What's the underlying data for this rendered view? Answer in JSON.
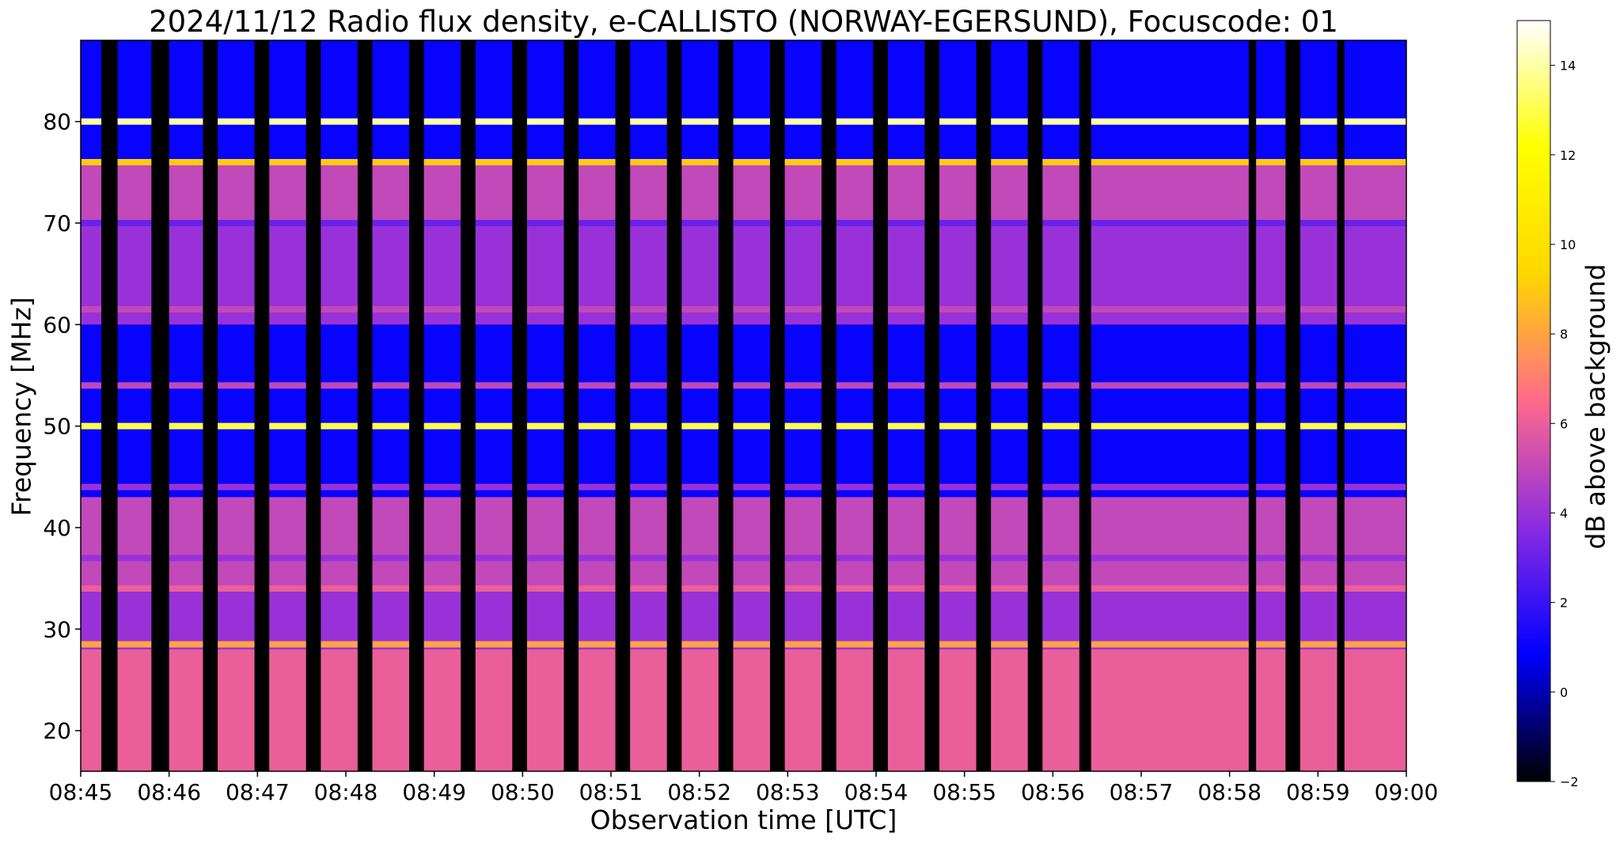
{
  "chart_data": {
    "type": "heatmap",
    "title": "2024/11/12  Radio flux density, e-CALLISTO (NORWAY-EGERSUND), Focuscode: 01",
    "xlabel": "Observation time [UTC]",
    "ylabel": "Frequency [MHz]",
    "colorbar_label": "dB above background",
    "x_ticks": [
      "08:45",
      "08:46",
      "08:47",
      "08:48",
      "08:49",
      "08:50",
      "08:51",
      "08:52",
      "08:53",
      "08:54",
      "08:55",
      "08:56",
      "08:57",
      "08:58",
      "08:59",
      "09:00"
    ],
    "x_range": [
      "08:45",
      "09:00"
    ],
    "y_ticks": [
      20,
      30,
      40,
      50,
      60,
      70,
      80
    ],
    "y_range": [
      16,
      88
    ],
    "colorbar_ticks": [
      -2,
      0,
      2,
      4,
      6,
      8,
      10,
      12,
      14
    ],
    "colorbar_range": [
      -2,
      15
    ],
    "colormap": "gnuplot2",
    "colormap_stops": [
      "#000000",
      "#0000ff",
      "#8a2be2",
      "#ff6a8a",
      "#ffd700",
      "#ffff00",
      "#ffffff"
    ],
    "background_db": -2,
    "rfi_lines_mhz": [
      80,
      76,
      70,
      61.5,
      54,
      50,
      44,
      37,
      34,
      28.5
    ],
    "rfi_line_db": [
      14,
      9,
      3,
      5,
      5,
      13,
      4,
      4,
      6,
      8
    ],
    "band_levels": [
      {
        "from": 16,
        "to": 28,
        "db": 6
      },
      {
        "from": 28,
        "to": 34,
        "db": 4
      },
      {
        "from": 34,
        "to": 43,
        "db": 5
      },
      {
        "from": 43,
        "to": 60,
        "db": 1
      },
      {
        "from": 60,
        "to": 70,
        "db": 4
      },
      {
        "from": 70,
        "to": 76,
        "db": 5
      },
      {
        "from": 76,
        "to": 88,
        "db": 1
      }
    ],
    "gaps_utc": [
      [
        "08:45:14",
        "08:45:25"
      ],
      [
        "08:45:48",
        "08:46:00"
      ],
      [
        "08:46:23",
        "08:46:33"
      ],
      [
        "08:46:58",
        "08:47:08"
      ],
      [
        "08:47:33",
        "08:47:43"
      ],
      [
        "08:48:08",
        "08:48:18"
      ],
      [
        "08:48:43",
        "08:48:53"
      ],
      [
        "08:49:18",
        "08:49:28"
      ],
      [
        "08:49:53",
        "08:50:03"
      ],
      [
        "08:50:28",
        "08:50:38"
      ],
      [
        "08:51:03",
        "08:51:13"
      ],
      [
        "08:51:38",
        "08:51:48"
      ],
      [
        "08:52:13",
        "08:52:23"
      ],
      [
        "08:52:48",
        "08:52:58"
      ],
      [
        "08:53:23",
        "08:53:33"
      ],
      [
        "08:53:58",
        "08:54:08"
      ],
      [
        "08:54:33",
        "08:54:43"
      ],
      [
        "08:55:08",
        "08:55:18"
      ],
      [
        "08:55:43",
        "08:55:53"
      ],
      [
        "08:56:18",
        "08:56:26"
      ],
      [
        "08:58:13",
        "08:58:18"
      ],
      [
        "08:58:38",
        "08:58:48"
      ],
      [
        "08:59:13",
        "08:59:18"
      ]
    ]
  }
}
